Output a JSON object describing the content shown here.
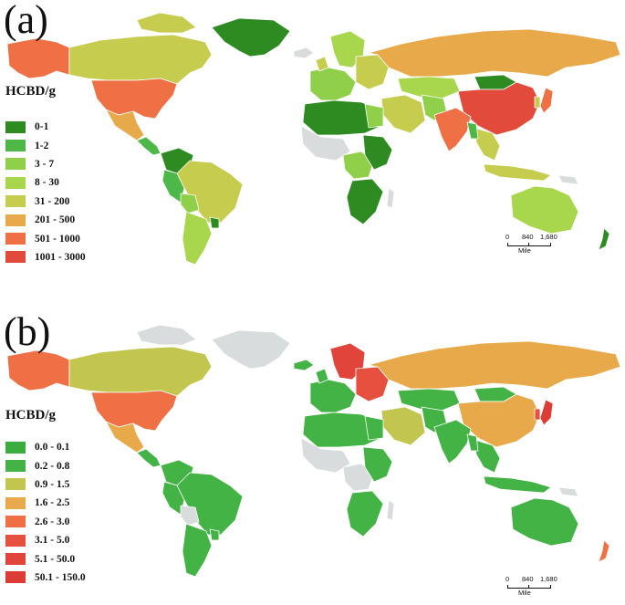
{
  "panels": [
    {
      "label": "(a)",
      "legend_title": "HCBD/g",
      "legend": [
        {
          "label": "0-1",
          "color": "#2e8b22"
        },
        {
          "label": "1-2",
          "color": "#4db847"
        },
        {
          "label": "3 - 7",
          "color": "#8fcf4a"
        },
        {
          "label": "8 - 30",
          "color": "#a8d64c"
        },
        {
          "label": "31 - 200",
          "color": "#c6cc4e"
        },
        {
          "label": "201 - 500",
          "color": "#e8a94a"
        },
        {
          "label": "501 - 1000",
          "color": "#ef7044"
        },
        {
          "label": "1001 - 3000",
          "color": "#e24a3c"
        }
      ],
      "scale": {
        "ticks": [
          "0",
          "840",
          "1,680"
        ],
        "unit": "Mile"
      }
    },
    {
      "label": "(b)",
      "legend_title": "HCBD/g",
      "legend": [
        {
          "label": "0.0 - 0.1",
          "color": "#3aad3e"
        },
        {
          "label": "0.2 - 0.8",
          "color": "#43b345"
        },
        {
          "label": "0.9 - 1.5",
          "color": "#c2c64e"
        },
        {
          "label": "1.6 - 2.5",
          "color": "#e8a94a"
        },
        {
          "label": "2.6 - 3.0",
          "color": "#ef7044"
        },
        {
          "label": "3.1 - 5.0",
          "color": "#e5503f"
        },
        {
          "label": "5.1 - 50.0",
          "color": "#e0443a"
        },
        {
          "label": "50.1 - 150.0",
          "color": "#dc3b36"
        }
      ],
      "scale": {
        "ticks": [
          "0",
          "840",
          "1,680"
        ],
        "unit": "Mile"
      }
    }
  ]
}
